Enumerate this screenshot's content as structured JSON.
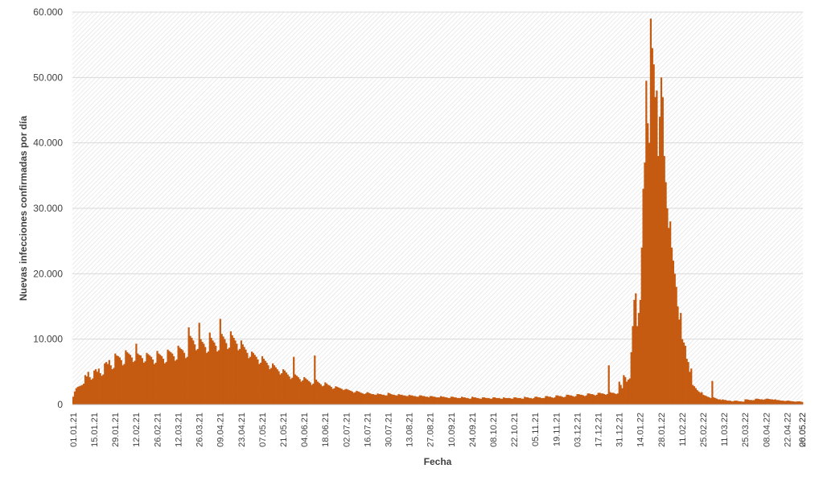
{
  "chart_data": {
    "type": "bar",
    "title": "",
    "xlabel": "Fecha",
    "ylabel": "Nuevas infecciones confirmadas por día",
    "ylim": [
      0,
      60000
    ],
    "yticks": [
      0,
      10000,
      20000,
      30000,
      40000,
      50000,
      60000
    ],
    "ytick_labels": [
      "0",
      "10.000",
      "20.000",
      "30.000",
      "40.000",
      "50.000",
      "60.000"
    ],
    "xtick_labels": [
      "01.01.21",
      "15.01.21",
      "29.01.21",
      "12.02.21",
      "26.02.21",
      "12.03.21",
      "26.03.21",
      "09.04.21",
      "23.04.21",
      "07.05.21",
      "21.05.21",
      "04.06.21",
      "18.06.21",
      "02.07.21",
      "16.07.21",
      "30.07.21",
      "13.08.21",
      "27.08.21",
      "10.09.21",
      "24.09.21",
      "08.10.21",
      "22.10.21",
      "05.11.21",
      "19.11.21",
      "03.12.21",
      "17.12.21",
      "31.12.21",
      "14.01.22",
      "28.01.22",
      "11.02.22",
      "25.02.22",
      "11.03.22",
      "25.03.22",
      "08.04.22",
      "22.04.22",
      "06.05.22",
      "20.05.22"
    ],
    "start_date": "01.01.21",
    "end_date": "20.05.22",
    "grid": true,
    "background": "hatched",
    "bar_color": "#c55a11",
    "daily_values_by_week": [
      [
        1200,
        2000,
        2500,
        2700,
        2800,
        2900,
        3000
      ],
      [
        3200,
        4500,
        4300,
        5000,
        4200,
        3800,
        4000
      ],
      [
        5200,
        5400,
        5000,
        5500,
        4800,
        4400,
        4600
      ],
      [
        6300,
        6500,
        6200,
        6800,
        6000,
        5400,
        5600
      ],
      [
        7800,
        7500,
        7400,
        7200,
        6800,
        6000,
        6200
      ],
      [
        8300,
        8000,
        7800,
        7600,
        7200,
        6500,
        6700
      ],
      [
        9300,
        7800,
        7600,
        7500,
        7100,
        6400,
        6600
      ],
      [
        7900,
        7700,
        7500,
        7300,
        6900,
        6200,
        6400
      ],
      [
        8200,
        7800,
        7600,
        7400,
        7000,
        6300,
        6500
      ],
      [
        8400,
        8200,
        8000,
        7800,
        7400,
        6700,
        6900
      ],
      [
        9000,
        8700,
        8500,
        8300,
        7900,
        7100,
        7300
      ],
      [
        11800,
        10500,
        10200,
        9800,
        9200,
        8300,
        8500
      ],
      [
        12500,
        10000,
        9600,
        9300,
        8800,
        7900,
        8100
      ],
      [
        11000,
        10200,
        9800,
        9500,
        9000,
        8100,
        8300
      ],
      [
        13100,
        10800,
        10400,
        10000,
        9400,
        8500,
        8700
      ],
      [
        11200,
        10600,
        10200,
        9800,
        9300,
        8300,
        8500
      ],
      [
        9800,
        9200,
        8800,
        8400,
        7900,
        7100,
        7300
      ],
      [
        8100,
        7900,
        7600,
        7300,
        6900,
        6200,
        6400
      ],
      [
        7400,
        7000,
        6700,
        6400,
        6000,
        5400,
        5600
      ],
      [
        6300,
        6000,
        5700,
        5400,
        5100,
        4600,
        4800
      ],
      [
        5400,
        5200,
        4900,
        4600,
        4300,
        3900,
        4100
      ],
      [
        7300,
        4600,
        4400,
        4200,
        3900,
        3500,
        3700
      ],
      [
        4200,
        4000,
        3800,
        3600,
        3400,
        3000,
        3200
      ],
      [
        7500,
        3800,
        3500,
        3300,
        3100,
        2800,
        2900
      ],
      [
        3400,
        3200,
        3000,
        2900,
        2700,
        2400,
        2500
      ],
      [
        2800,
        2700,
        2600,
        2500,
        2400,
        2200,
        2300
      ],
      [
        2400,
        2300,
        2200,
        2100,
        2000,
        1800,
        1900
      ],
      [
        2100,
        2000,
        1900,
        1800,
        1700,
        1600,
        1700
      ],
      [
        1900,
        1800,
        1700,
        1600,
        1600,
        1500,
        1500
      ],
      [
        1700,
        1600,
        1600,
        1500,
        1500,
        1400,
        1400
      ],
      [
        1800,
        1700,
        1600,
        1500,
        1500,
        1400,
        1400
      ],
      [
        1600,
        1500,
        1500,
        1400,
        1400,
        1300,
        1300
      ],
      [
        1500,
        1400,
        1400,
        1300,
        1300,
        1200,
        1200
      ],
      [
        1400,
        1400,
        1300,
        1300,
        1200,
        1200,
        1100
      ],
      [
        1300,
        1300,
        1200,
        1200,
        1100,
        1100,
        1100
      ],
      [
        1300,
        1200,
        1200,
        1100,
        1100,
        1000,
        1000
      ],
      [
        1200,
        1200,
        1100,
        1100,
        1000,
        1000,
        1000
      ],
      [
        1200,
        1100,
        1100,
        1000,
        1000,
        900,
        900
      ],
      [
        1200,
        1100,
        1100,
        1000,
        1000,
        900,
        900
      ],
      [
        1100,
        1100,
        1000,
        1000,
        1000,
        900,
        900
      ],
      [
        1100,
        1100,
        1000,
        1000,
        1000,
        900,
        900
      ],
      [
        1100,
        1000,
        1000,
        1000,
        1000,
        900,
        900
      ],
      [
        1100,
        1100,
        1000,
        1000,
        1000,
        900,
        900
      ],
      [
        1200,
        1100,
        1100,
        1000,
        1000,
        900,
        1000
      ],
      [
        1200,
        1200,
        1100,
        1100,
        1000,
        1000,
        1000
      ],
      [
        1300,
        1300,
        1200,
        1200,
        1100,
        1000,
        1100
      ],
      [
        1400,
        1400,
        1300,
        1300,
        1200,
        1100,
        1200
      ],
      [
        1500,
        1500,
        1400,
        1400,
        1300,
        1200,
        1300
      ],
      [
        1600,
        1600,
        1500,
        1500,
        1400,
        1300,
        1400
      ],
      [
        1700,
        1700,
        1600,
        1600,
        1500,
        1400,
        1500
      ],
      [
        1800,
        1800,
        1700,
        1700,
        1600,
        1500,
        1600
      ],
      [
        6000,
        1900,
        1800,
        1800,
        1700,
        1600,
        1700
      ],
      [
        3500,
        3000,
        2500,
        4500,
        4200,
        3500,
        3800
      ],
      [
        4000,
        8000,
        12000,
        16000,
        17000,
        12000,
        14000
      ],
      [
        16000,
        24000,
        33000,
        37000,
        49500,
        43000,
        40000
      ],
      [
        59000,
        54500,
        52000,
        47000,
        48000,
        38000,
        44000
      ],
      [
        50000,
        47000,
        38000,
        34000,
        30000,
        27000,
        28000
      ],
      [
        24000,
        22000,
        20000,
        18000,
        15000,
        13000,
        14000
      ],
      [
        10000,
        9500,
        9000,
        7000,
        6500,
        5000,
        5500
      ],
      [
        3000,
        2800,
        2500,
        2200,
        2000,
        1800,
        1900
      ],
      [
        1500,
        1400,
        1300,
        1200,
        1100,
        1000,
        3600
      ],
      [
        1100,
        1000,
        900,
        800,
        800,
        700,
        800
      ],
      [
        700,
        700,
        600,
        600,
        600,
        500,
        500
      ],
      [
        600,
        600,
        550,
        500,
        500,
        450,
        450
      ],
      [
        800,
        800,
        750,
        700,
        700,
        650,
        700
      ],
      [
        900,
        900,
        850,
        800,
        800,
        750,
        800
      ],
      [
        900,
        900,
        850,
        800,
        800,
        750,
        800
      ],
      [
        700,
        700,
        650,
        600,
        600,
        550,
        550
      ],
      [
        600,
        600,
        550,
        500,
        500,
        450,
        450
      ],
      [
        500,
        500,
        450,
        400
      ]
    ]
  }
}
